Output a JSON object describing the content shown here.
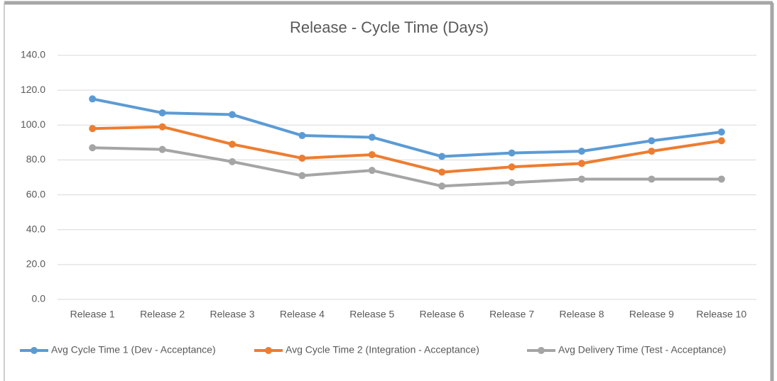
{
  "chart_data": {
    "type": "line",
    "title": "Release - Cycle Time (Days)",
    "categories": [
      "Release 1",
      "Release 2",
      "Release 3",
      "Release 4",
      "Release 5",
      "Release 6",
      "Release 7",
      "Release 8",
      "Release 9",
      "Release 10"
    ],
    "series": [
      {
        "name": "Avg Cycle Time 1 (Dev - Acceptance)",
        "color": "#5b9bd5",
        "values": [
          115,
          107,
          106,
          94,
          93,
          82,
          84,
          85,
          91,
          96
        ]
      },
      {
        "name": "Avg Cycle Time 2 (Integration - Acceptance)",
        "color": "#ed7d31",
        "values": [
          98,
          99,
          89,
          81,
          83,
          73,
          76,
          78,
          85,
          91
        ]
      },
      {
        "name": "Avg Delivery Time (Test - Acceptance)",
        "color": "#a5a5a5",
        "values": [
          87,
          86,
          79,
          71,
          74,
          65,
          67,
          69,
          69,
          69
        ]
      }
    ],
    "ylim": [
      0,
      140
    ],
    "yticks": [
      {
        "value": 0,
        "label": "0.0"
      },
      {
        "value": 20,
        "label": "20.0"
      },
      {
        "value": 40,
        "label": "40.0"
      },
      {
        "value": 60,
        "label": "60.0"
      },
      {
        "value": 80,
        "label": "80.0"
      },
      {
        "value": 100,
        "label": "100.0"
      },
      {
        "value": 120,
        "label": "120.0"
      },
      {
        "value": 140,
        "label": "140.0"
      }
    ],
    "grid": true,
    "legend": "bottom"
  }
}
